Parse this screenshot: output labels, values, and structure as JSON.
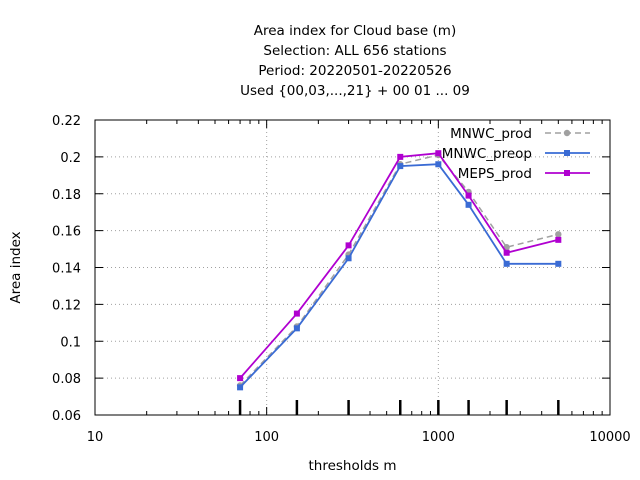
{
  "chart_data": {
    "type": "line",
    "title_lines": [
      "Area index  for Cloud base (m)",
      "Selection: ALL    656 stations",
      "Period: 20220501-20220526",
      "Used {00,03,...,21} + 00 01 ... 09"
    ],
    "xlabel": "thresholds m",
    "ylabel": "Area index",
    "xscale": "log",
    "xlim": [
      10,
      10000
    ],
    "ylim": [
      0.06,
      0.22
    ],
    "x_ticks": [
      10,
      100,
      1000,
      10000
    ],
    "x_tick_labels": [
      "10",
      "100",
      "1000",
      "10000"
    ],
    "y_ticks": [
      0.06,
      0.08,
      0.1,
      0.12,
      0.14,
      0.16,
      0.18,
      0.2,
      0.22
    ],
    "y_tick_labels": [
      "0.06",
      "0.08",
      "0.1",
      "0.12",
      "0.14",
      "0.16",
      "0.18",
      "0.2",
      "0.22"
    ],
    "grid": true,
    "legend_position": "top-right",
    "threshold_markers": [
      70,
      150,
      300,
      600,
      1000,
      1500,
      2500,
      5000
    ],
    "x": [
      70,
      150,
      300,
      600,
      1000,
      1500,
      2500,
      5000
    ],
    "series": [
      {
        "name": "MNWC_prod",
        "color": "#a0a0a0",
        "dashed": true,
        "marker": "circle",
        "values": [
          0.076,
          0.108,
          0.147,
          0.196,
          0.201,
          0.181,
          0.151,
          0.158
        ]
      },
      {
        "name": "MNWC_preop",
        "color": "#3a6bd4",
        "dashed": false,
        "marker": "square",
        "values": [
          0.075,
          0.107,
          0.145,
          0.195,
          0.196,
          0.174,
          0.142,
          0.142
        ]
      },
      {
        "name": "MEPS_prod",
        "color": "#b000d0",
        "dashed": false,
        "marker": "square",
        "values": [
          0.08,
          0.115,
          0.152,
          0.2,
          0.202,
          0.179,
          0.148,
          0.155
        ]
      }
    ]
  }
}
